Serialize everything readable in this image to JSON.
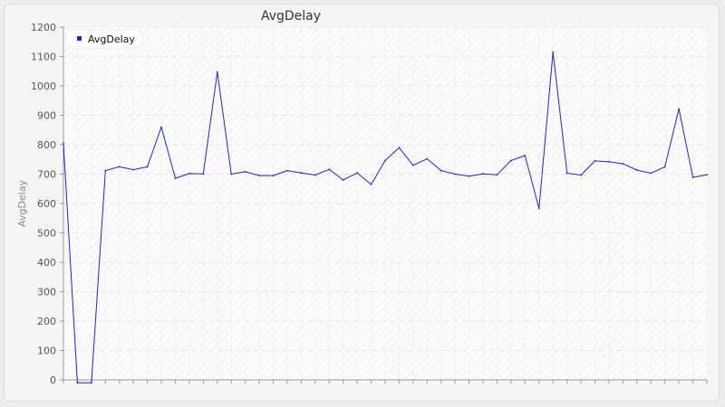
{
  "chart_data": {
    "type": "line",
    "title": "AvgDelay",
    "xlabel": "",
    "ylabel": "AvgDelay",
    "ylim": [
      0,
      1200
    ],
    "yticks": [
      0,
      100,
      200,
      300,
      400,
      500,
      600,
      700,
      800,
      900,
      1000,
      1100,
      1200
    ],
    "grid": true,
    "legend": {
      "position": "top-left",
      "entries": [
        "AvgDelay"
      ]
    },
    "series": [
      {
        "name": "AvgDelay",
        "color": "#2222cc",
        "values": [
          805,
          -10,
          -10,
          712,
          725,
          715,
          725,
          860,
          686,
          702,
          701,
          1047,
          700,
          708,
          695,
          695,
          712,
          704,
          697,
          716,
          680,
          704,
          665,
          746,
          790,
          730,
          752,
          712,
          700,
          693,
          701,
          698,
          746,
          763,
          583,
          1115,
          703,
          697,
          745,
          742,
          735,
          714,
          703,
          725,
          922,
          689,
          698
        ]
      }
    ]
  }
}
